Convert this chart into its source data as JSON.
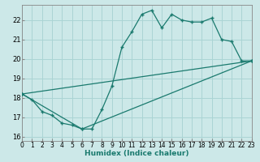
{
  "xlabel": "Humidex (Indice chaleur)",
  "background_color": "#cce8e8",
  "line_color": "#1a7a6e",
  "grid_color": "#aad4d4",
  "xlim": [
    0,
    23
  ],
  "ylim": [
    15.8,
    22.8
  ],
  "yticks": [
    16,
    17,
    18,
    19,
    20,
    21,
    22
  ],
  "xticks": [
    0,
    1,
    2,
    3,
    4,
    5,
    6,
    7,
    8,
    9,
    10,
    11,
    12,
    13,
    14,
    15,
    16,
    17,
    18,
    19,
    20,
    21,
    22,
    23
  ],
  "series1_x": [
    0,
    1,
    2,
    3,
    4,
    5,
    6,
    7,
    8,
    9,
    10,
    11,
    12,
    13,
    14,
    15,
    16,
    17,
    18,
    19,
    20,
    21,
    22,
    23
  ],
  "series1_y": [
    18.2,
    17.9,
    17.3,
    17.1,
    16.7,
    16.6,
    16.4,
    16.4,
    17.4,
    18.6,
    20.6,
    21.4,
    22.3,
    22.5,
    21.6,
    22.3,
    22.0,
    21.9,
    21.9,
    22.1,
    21.0,
    20.9,
    19.9,
    19.9
  ],
  "series2_x": [
    0,
    23
  ],
  "series2_y": [
    18.2,
    19.9
  ],
  "series3_x": [
    0,
    6,
    23
  ],
  "series3_y": [
    18.2,
    16.4,
    19.9
  ]
}
